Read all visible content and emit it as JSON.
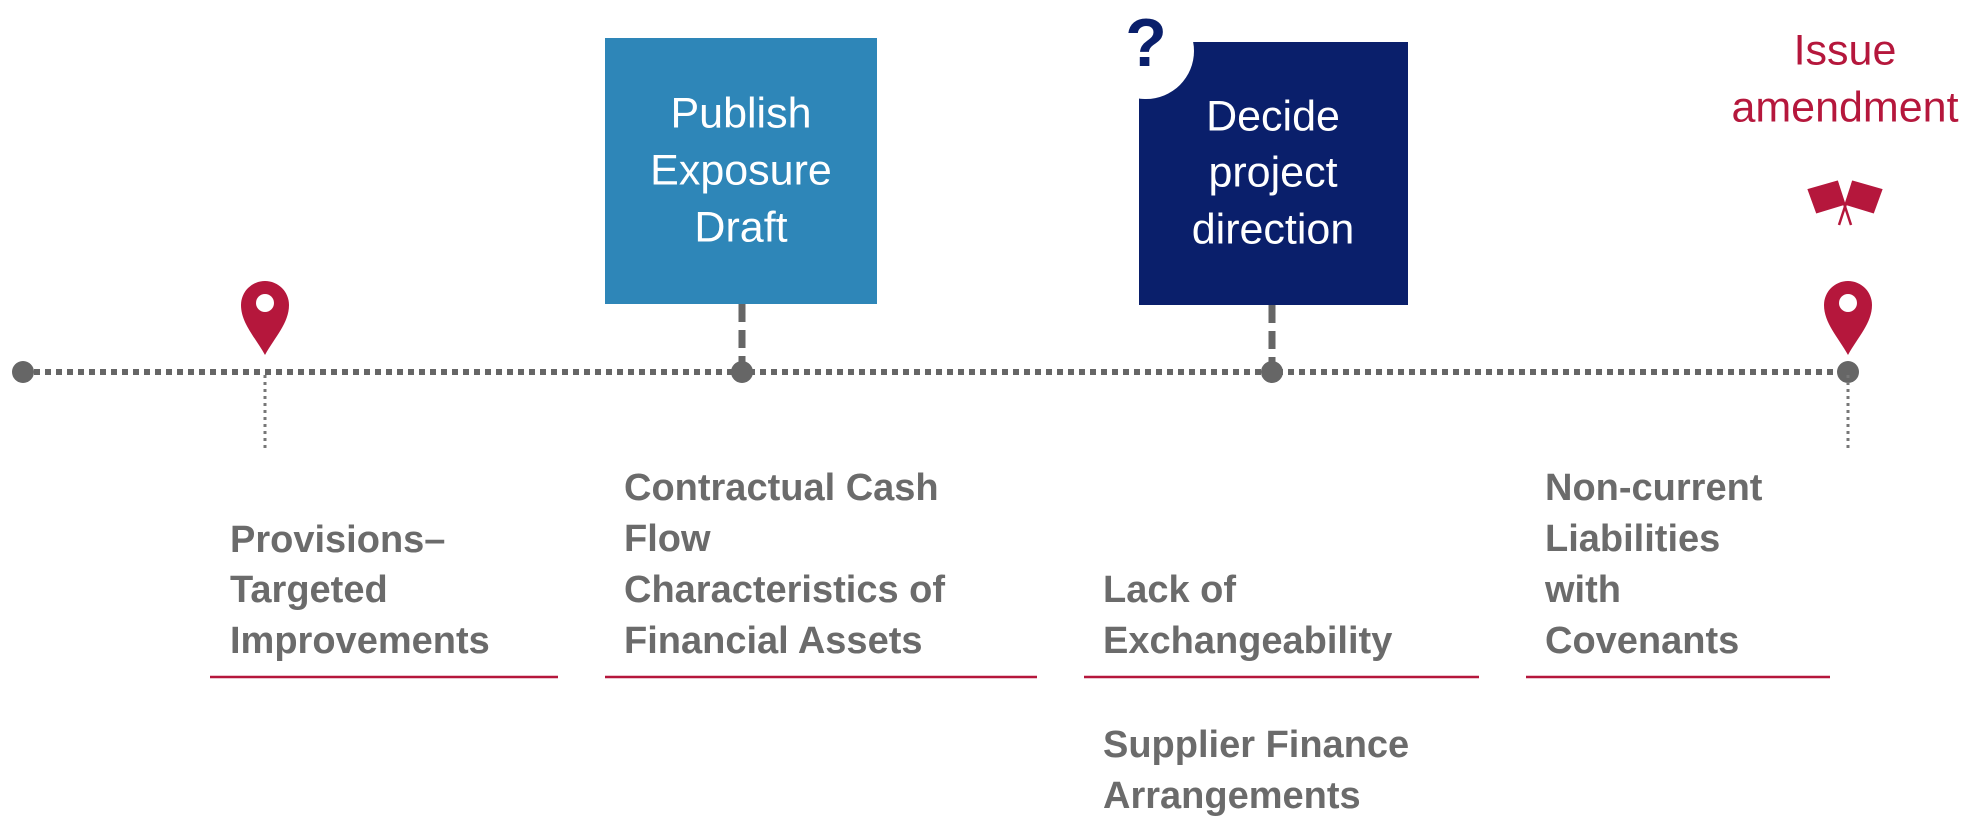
{
  "milestones": [
    {
      "lines": [
        "Publish",
        "Exposure",
        "Draft"
      ]
    },
    {
      "lines": [
        "Decide",
        "project",
        "direction"
      ]
    },
    {
      "lines": [
        "Issue",
        "amendment"
      ]
    }
  ],
  "projects": [
    {
      "lines": [
        "Provisions–",
        "Targeted",
        "Improvements"
      ]
    },
    {
      "lines": [
        "Contractual Cash",
        "Flow",
        "Characteristics of",
        "Financial Assets"
      ]
    },
    {
      "lines": [
        "Lack of",
        "Exchangeability"
      ]
    },
    {
      "lines": [
        "Supplier Finance",
        "Arrangements"
      ]
    },
    {
      "lines": [
        "Non-current",
        "Liabilities",
        "with",
        "Covenants"
      ]
    }
  ]
}
